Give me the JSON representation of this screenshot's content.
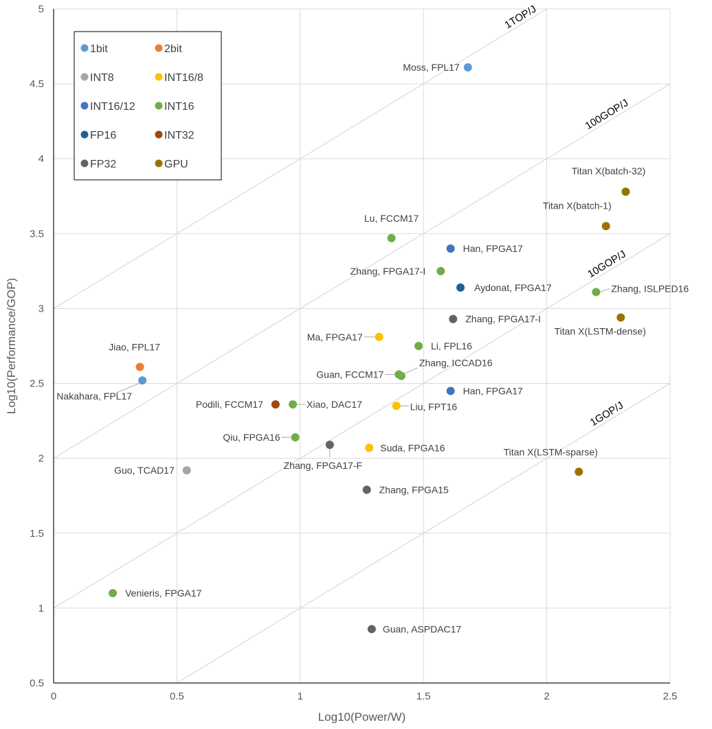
{
  "chart_data": {
    "type": "scatter",
    "title": "",
    "xlabel": "Log10(Power/W)",
    "ylabel": "Log10(Performance/GOP)",
    "xlim": [
      0,
      2.5
    ],
    "ylim": [
      0.5,
      5
    ],
    "x_ticks": [
      "0",
      "0.5",
      "1",
      "1.5",
      "2",
      "2.5"
    ],
    "y_ticks": [
      "0.5",
      "1",
      "1.5",
      "2",
      "2.5",
      "3",
      "3.5",
      "4",
      "4.5",
      "5"
    ],
    "grid": true,
    "legend_position": "top-left",
    "series": [
      {
        "name": "1bit",
        "color": "#5B9BD5",
        "points": [
          {
            "label": "Moss, FPL17",
            "x": 1.68,
            "y": 4.61
          },
          {
            "label": "Nakahara, FPL17",
            "x": 0.36,
            "y": 2.52
          }
        ]
      },
      {
        "name": "2bit",
        "color": "#ED7D31",
        "points": [
          {
            "label": "Jiao, FPL17",
            "x": 0.35,
            "y": 2.61
          }
        ]
      },
      {
        "name": "INT8",
        "color": "#A5A5A5",
        "points": [
          {
            "label": "Guo, TCAD17",
            "x": 0.54,
            "y": 1.92
          }
        ]
      },
      {
        "name": "INT16/8",
        "color": "#FFC000",
        "points": [
          {
            "label": "Ma, FPGA17",
            "x": 1.32,
            "y": 2.81
          },
          {
            "label": "Liu, FPT16",
            "x": 1.39,
            "y": 2.35
          },
          {
            "label": "Suda, FPGA16",
            "x": 1.28,
            "y": 2.07
          }
        ]
      },
      {
        "name": "INT16/12",
        "color": "#4472C4",
        "points": [
          {
            "label": "Han, FPGA17",
            "x": 1.61,
            "y": 3.4
          },
          {
            "label": "Han, FPGA17",
            "x": 1.61,
            "y": 2.45
          }
        ]
      },
      {
        "name": "INT16",
        "color": "#70AD47",
        "points": [
          {
            "label": "Lu, FCCM17",
            "x": 1.37,
            "y": 3.47
          },
          {
            "label": "Zhang, FPGA17-I",
            "x": 1.57,
            "y": 3.25
          },
          {
            "label": "Zhang, ISLPED16",
            "x": 2.2,
            "y": 3.11
          },
          {
            "label": "Li, FPL16",
            "x": 1.48,
            "y": 2.75
          },
          {
            "label": "Guan, FCCM17",
            "x": 1.4,
            "y": 2.56
          },
          {
            "label": "Zhang, ICCAD16",
            "x": 1.41,
            "y": 2.55
          },
          {
            "label": "Xiao, DAC17",
            "x": 0.97,
            "y": 2.36
          },
          {
            "label": "Qiu, FPGA16",
            "x": 0.98,
            "y": 2.14
          },
          {
            "label": "Venieris, FPGA17",
            "x": 0.24,
            "y": 1.1
          }
        ]
      },
      {
        "name": "FP16",
        "color": "#255E91",
        "points": [
          {
            "label": "Aydonat, FPGA17",
            "x": 1.65,
            "y": 3.14
          }
        ]
      },
      {
        "name": "INT32",
        "color": "#9E480E",
        "points": [
          {
            "label": "Podili, FCCM17",
            "x": 0.9,
            "y": 2.36
          }
        ]
      },
      {
        "name": "FP32",
        "color": "#636363",
        "points": [
          {
            "label": "Zhang, FPGA17-I",
            "x": 1.62,
            "y": 2.93
          },
          {
            "label": "Zhang, FPGA17-F",
            "x": 1.12,
            "y": 2.09
          },
          {
            "label": "Zhang, FPGA15",
            "x": 1.27,
            "y": 1.79
          },
          {
            "label": "Guan, ASPDAC17",
            "x": 1.29,
            "y": 0.86
          }
        ]
      },
      {
        "name": "GPU",
        "color": "#997300",
        "points": [
          {
            "label": "Titan X(batch-32)",
            "x": 2.32,
            "y": 3.78
          },
          {
            "label": "Titan X(batch-1)",
            "x": 2.24,
            "y": 3.55
          },
          {
            "label": "Titan X(LSTM-dense)",
            "x": 2.3,
            "y": 2.94
          },
          {
            "label": "Titan X(LSTM-sparse)",
            "x": 2.13,
            "y": 1.91
          }
        ]
      }
    ],
    "efficiency_lines": [
      {
        "label": "1TOP/J",
        "offset": 3
      },
      {
        "label": "100GOP/J",
        "offset": 2
      },
      {
        "label": "10GOP/J",
        "offset": 1
      },
      {
        "label": "1GOP/J",
        "offset": 0
      }
    ]
  }
}
